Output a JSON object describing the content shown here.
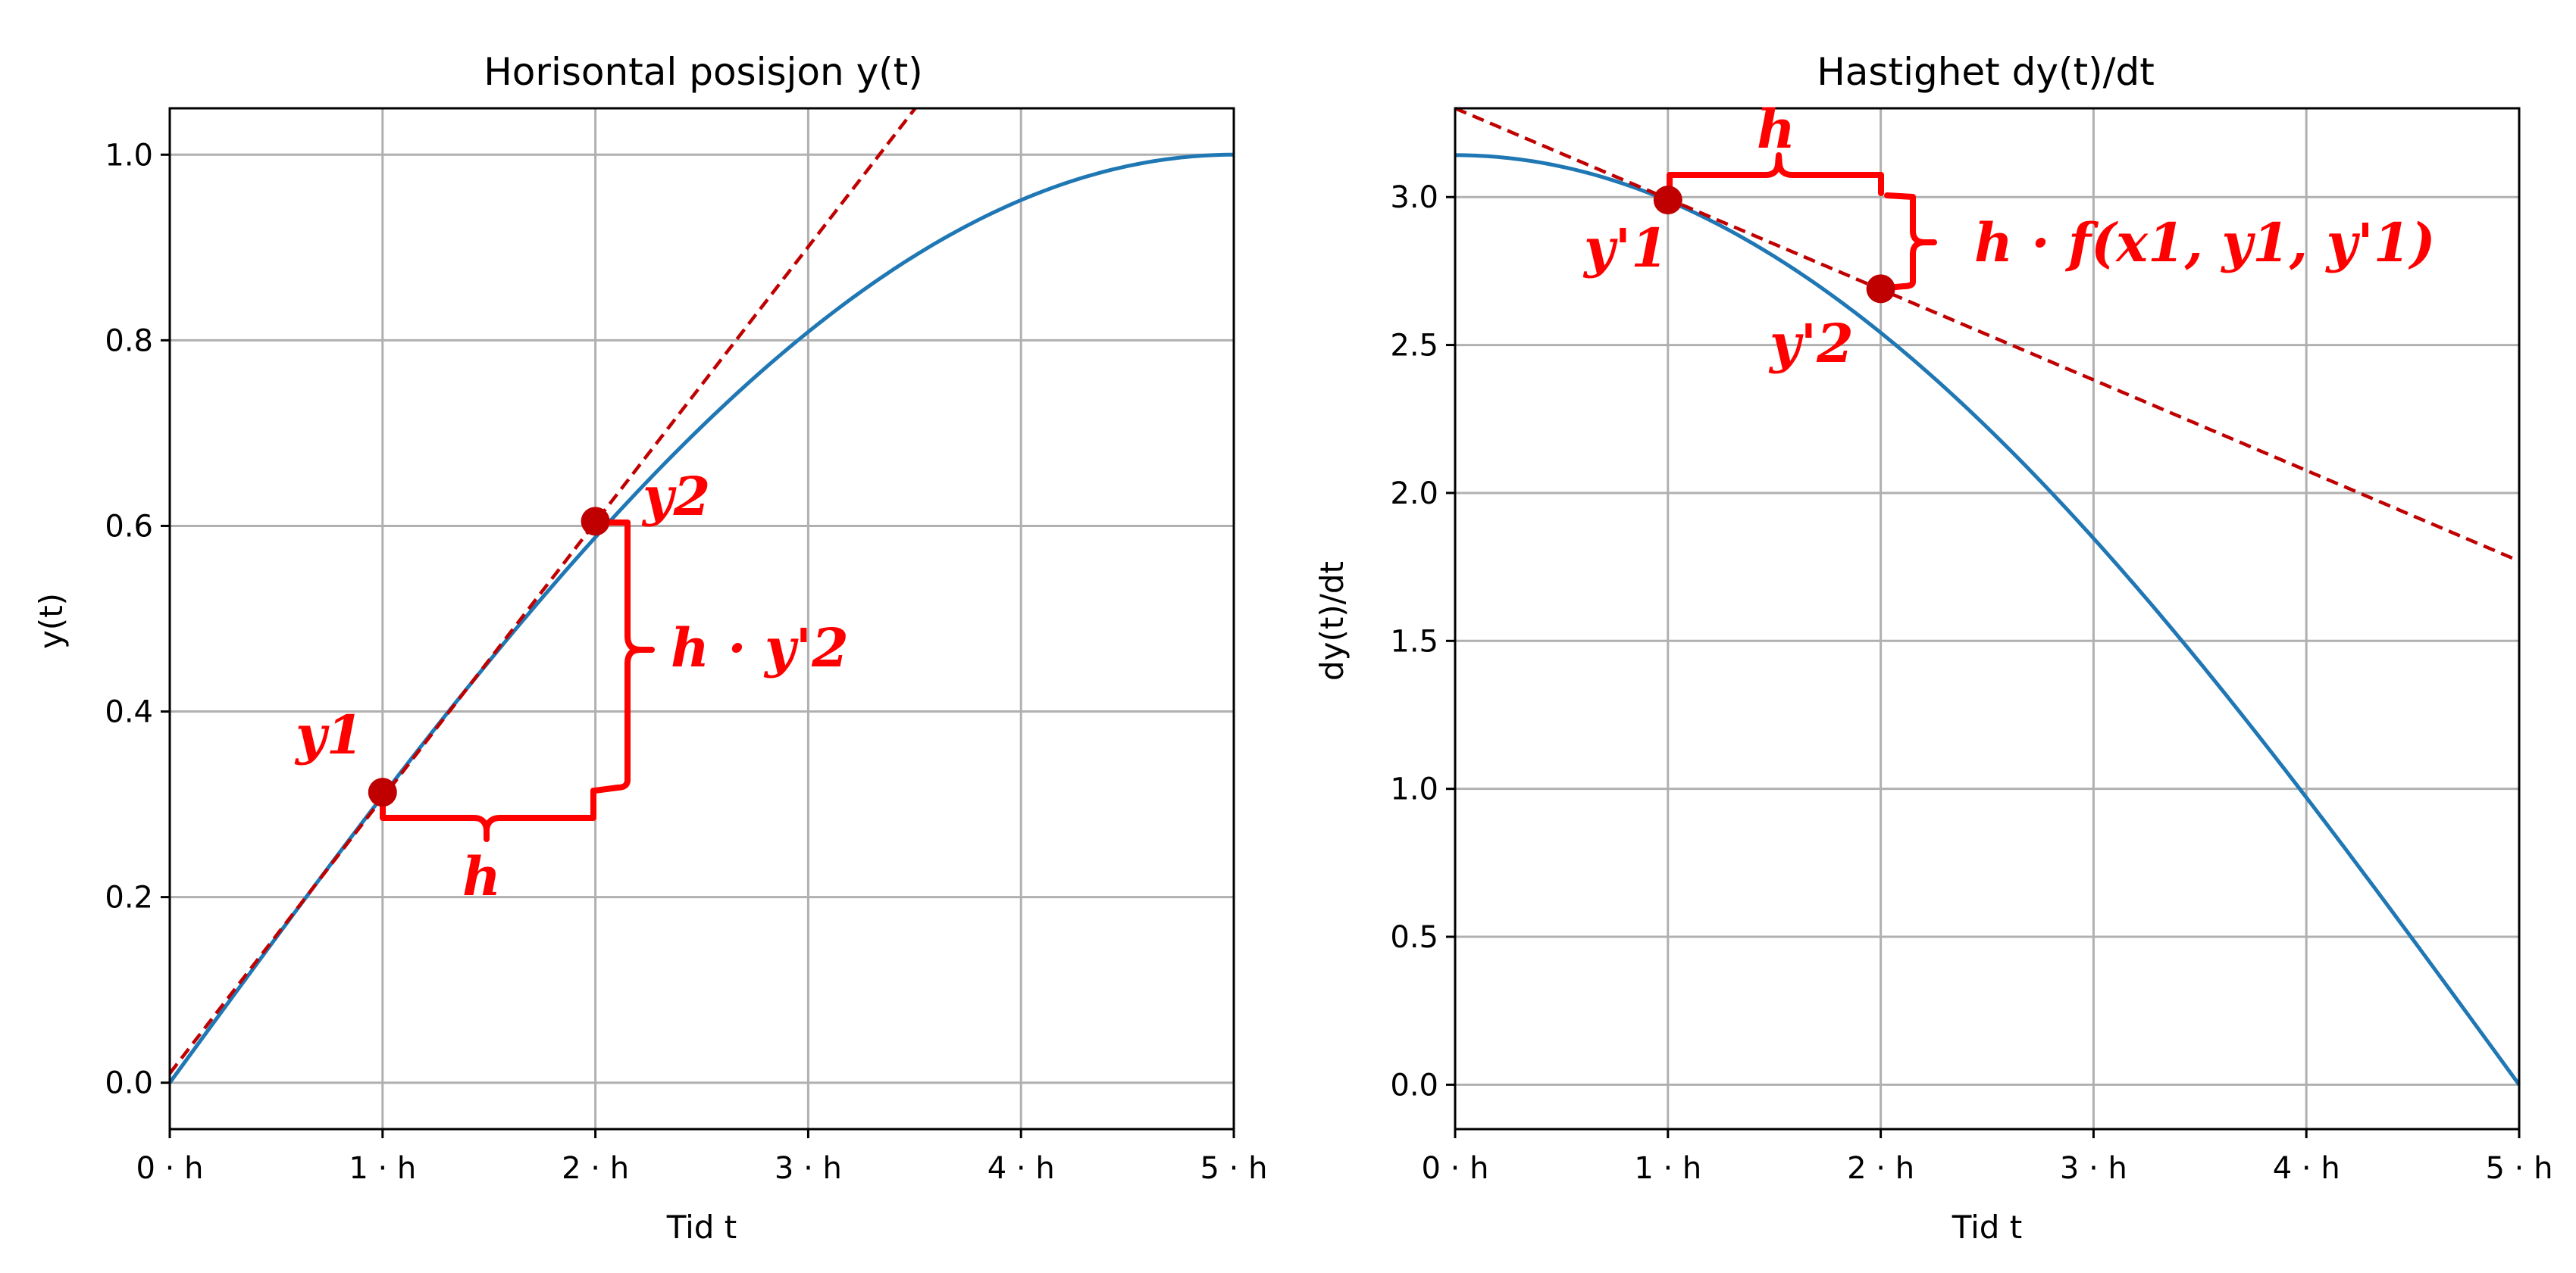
{
  "chart_data": [
    {
      "type": "line",
      "title": "Horisontal posisjon y(t)",
      "xlabel": "Tid t",
      "ylabel": "y(t)",
      "xlim": [
        0,
        5
      ],
      "ylim": [
        -0.05,
        1.05
      ],
      "grid": true,
      "x_ticks": [
        "0 · h",
        "1 · h",
        "2 · h",
        "3 · h",
        "4 · h",
        "5 · h"
      ],
      "y_ticks": [
        "0.0",
        "0.2",
        "0.4",
        "0.6",
        "0.8",
        "1.0"
      ],
      "series": [
        {
          "function": "sin(pi*t/10)",
          "x_range": [
            0,
            5
          ],
          "color": "#1f77b4"
        }
      ],
      "tangent_line": {
        "color": "#c00000",
        "style": "dashed",
        "through": [
          0,
          0.01
        ],
        "slope": 0.2969
      },
      "points": [
        {
          "label": "y1",
          "x": 1,
          "y": 0.313
        },
        {
          "label": "y2",
          "x": 2,
          "y": 0.605
        }
      ],
      "annotations": {
        "h": "h",
        "step": "h · y'2",
        "point1": "y1",
        "point2": "y2"
      }
    },
    {
      "type": "line",
      "title": "Hastighet dy(t)/dt",
      "xlabel": "Tid t",
      "ylabel": "dy(t)/dt",
      "xlim": [
        0,
        5
      ],
      "ylim": [
        -0.15,
        3.3
      ],
      "grid": true,
      "x_ticks": [
        "0 · h",
        "1 · h",
        "2 · h",
        "3 · h",
        "4 · h",
        "5 · h"
      ],
      "y_ticks": [
        "0.0",
        "0.5",
        "1.0",
        "1.5",
        "2.0",
        "2.5",
        "3.0"
      ],
      "series": [
        {
          "function": "pi*cos(pi*t/10)",
          "x_range": [
            0,
            5
          ],
          "color": "#1f77b4"
        }
      ],
      "tangent_line": {
        "color": "#c00000",
        "style": "dashed",
        "through": [
          0,
          3.3
        ],
        "slope": -0.306
      },
      "points": [
        {
          "label": "y'1",
          "x": 1,
          "y": 2.99
        },
        {
          "label": "y'2",
          "x": 2,
          "y": 2.69
        }
      ],
      "annotations": {
        "h": "h",
        "step": "h · f(x1, y1, y'1)",
        "point1": "y'1",
        "point2": "y'2"
      }
    }
  ],
  "colors": {
    "curve": "#1f77b4",
    "tangent": "#c00000",
    "points": "#c00000",
    "annotation": "#ff0000",
    "grid": "#b0b0b0"
  }
}
